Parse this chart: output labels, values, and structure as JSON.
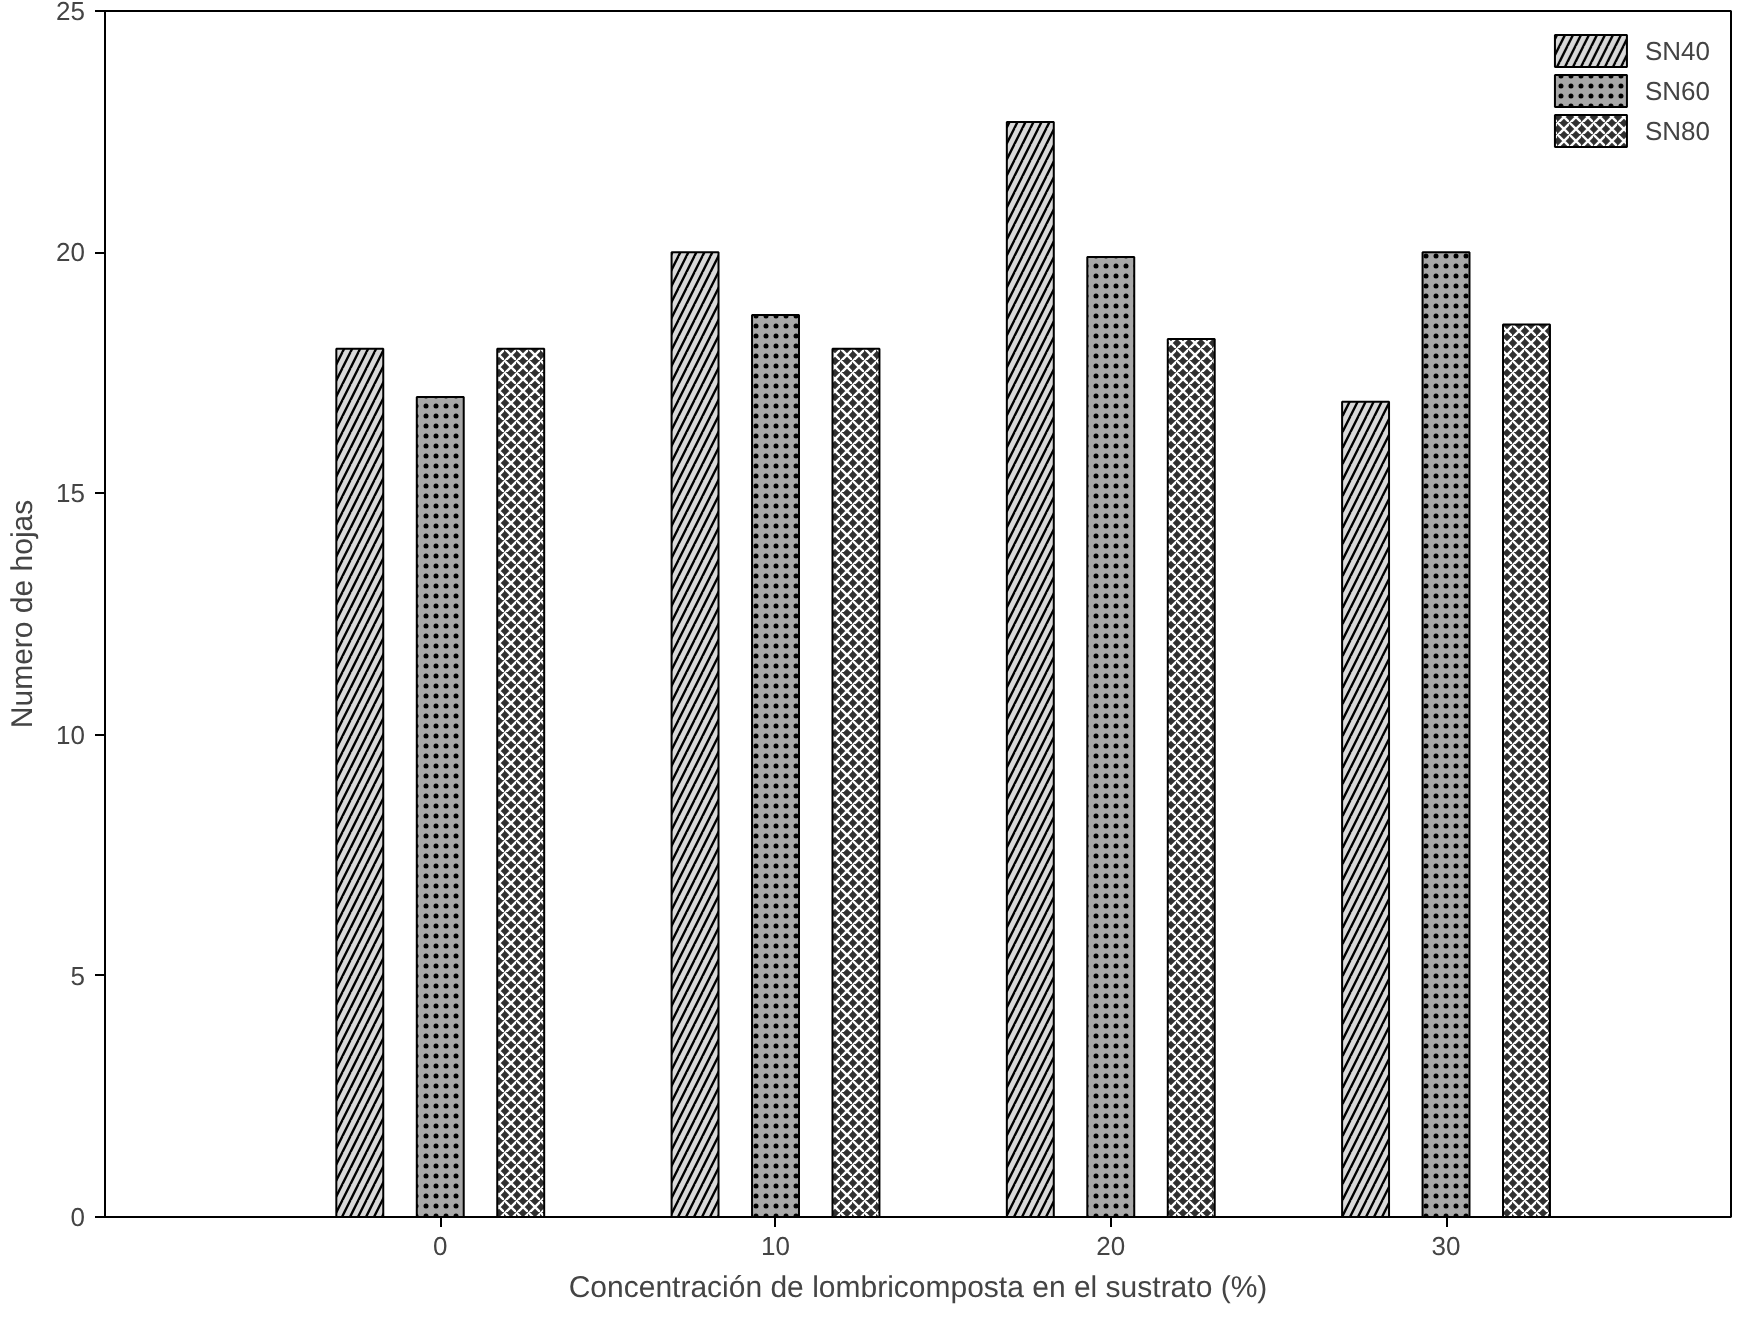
{
  "chart_data": {
    "type": "bar",
    "xlabel": "Concentración de lombricomposta en el sustrato (%)",
    "ylabel": "Numero de hojas",
    "x": [
      0,
      10,
      20,
      30
    ],
    "xlim": [
      -10,
      38.5
    ],
    "xticks": [
      0,
      10,
      20,
      30
    ],
    "ylim": [
      0,
      25
    ],
    "yticks": [
      0,
      5,
      10,
      15,
      20,
      25
    ],
    "grid": false,
    "legend": "top right",
    "series": [
      {
        "name": "SN40",
        "color": "#d8d8d8",
        "values": [
          18,
          20,
          22.7,
          16.9
        ]
      },
      {
        "name": "SN60",
        "color": "#a8a8a8",
        "values": [
          17,
          18.7,
          19.9,
          20
        ]
      },
      {
        "name": "SN80",
        "color": "#303030",
        "values": [
          18,
          18,
          18.2,
          18.5
        ]
      }
    ]
  }
}
